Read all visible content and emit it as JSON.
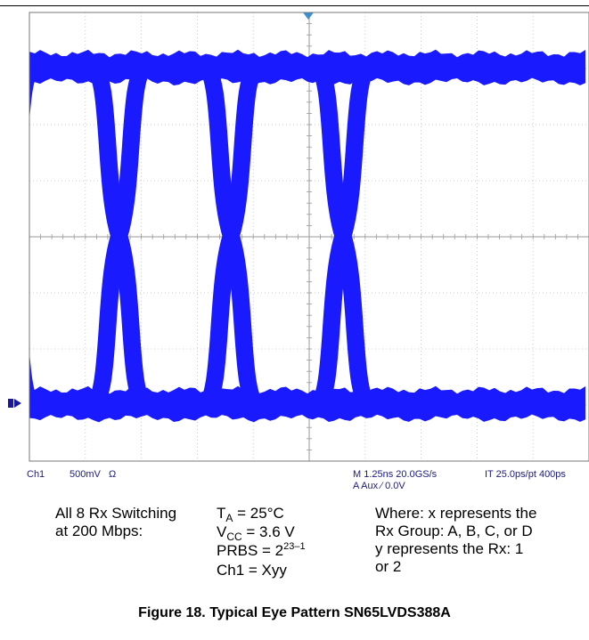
{
  "chart_data": {
    "type": "eye-diagram",
    "title": "",
    "ui_ns": 2.5,
    "levels": {
      "high": 1.0,
      "low": -1.0
    },
    "crossings_ns": [
      -0.5,
      2.0,
      4.5,
      7.0
    ],
    "grid": true,
    "divisions": {
      "x": 10,
      "y": 8
    },
    "color": "#1a1aff"
  },
  "scope_status": {
    "ch1_label": "Ch1",
    "ch1_scale": "500mV",
    "ch1_unit": "Ω",
    "timebase": "M 1.25ns 20.0GS/s",
    "interp": "IT 25.0ps/pt 400ps",
    "trigger": "A  Aux   ⁄  0.0V"
  },
  "conditions": {
    "col1_line1": "All 8 Rx Switching",
    "col1_line2": "at 200 Mbps:",
    "ta_main": "T",
    "ta_sub": "A",
    "ta_value": " = 25°C",
    "vcc_main": "V",
    "vcc_sub": "CC",
    "vcc_value": " = 3.6 V",
    "prbs_main": "PRBS = 2",
    "prbs_sup": "23–1",
    "ch1_line": "Ch1 = Xyy",
    "where_line1": "Where: x represents the",
    "where_line2": "Rx Group: A, B, C, or D",
    "where_line3": "y represents the Rx: 1",
    "where_line4": "or 2"
  },
  "caption": "Figure 18. Typical Eye Pattern SN65LVDS388A"
}
